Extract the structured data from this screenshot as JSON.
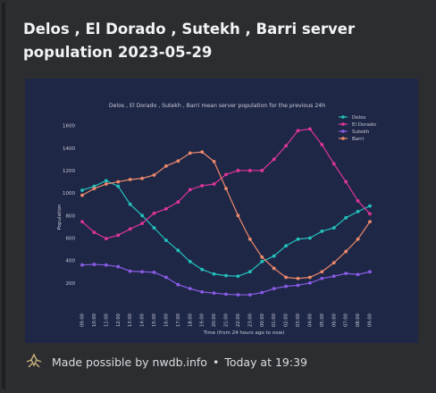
{
  "embed": {
    "title": "Delos , El Dorado , Sutekh , Barri server population 2023-05-29",
    "footer_text": "Made possible by nwdb.info",
    "footer_time": "Today at 19:39",
    "footer_separator": "•",
    "footer_icon": "nwdb-logo-icon"
  },
  "colors": {
    "background": "#2b2d31",
    "plot_background": "#1f2747",
    "Delos": "#22c3bd",
    "El Dorado": "#e0359a",
    "Sutekh": "#8a5ce6",
    "Barri": "#ee8a6a"
  },
  "chart_data": {
    "type": "line",
    "title": "Delos , El Dorado , Sutekh , Barri mean server population for the previous 24h",
    "xlabel": "Time (from 24 hours ago to now)",
    "ylabel": "Population",
    "ylim": [
      0,
      1700
    ],
    "yticks": [
      200,
      400,
      600,
      800,
      1000,
      1200,
      1400,
      1600
    ],
    "grid": false,
    "legend_position": "top-right",
    "x_ticks": [
      "09:00",
      "10:00",
      "11:00",
      "12:00",
      "13:00",
      "14:00",
      "15:00",
      "16:00",
      "17:00",
      "18:00",
      "19:00",
      "20:00",
      "21:00",
      "22:00",
      "23:00",
      "00:00",
      "01:00",
      "02:00",
      "03:00",
      "04:00",
      "05:00",
      "06:00",
      "07:00",
      "08:00",
      "09:00"
    ],
    "x": [
      0,
      0.5,
      1,
      1.5,
      2,
      2.5,
      3,
      3.5,
      4,
      4.5,
      5,
      5.5,
      6,
      6.5,
      7,
      7.5,
      8,
      8.5,
      9,
      9.5,
      10,
      10.5,
      11,
      11.5,
      12,
      12.5,
      13,
      13.5,
      14,
      14.5,
      15,
      15.5,
      16,
      16.5,
      17,
      17.5,
      18,
      18.5,
      19,
      19.5,
      20,
      20.5,
      21,
      21.5,
      22,
      22.5,
      23,
      23.5,
      24
    ],
    "series": [
      {
        "name": "Delos",
        "points": [
          [
            0,
            1025
          ],
          [
            1,
            1060
          ],
          [
            2,
            1110
          ],
          [
            3,
            1060
          ],
          [
            4,
            900
          ],
          [
            5,
            800
          ],
          [
            6,
            690
          ],
          [
            7,
            580
          ],
          [
            8,
            490
          ],
          [
            9,
            390
          ],
          [
            10,
            320
          ],
          [
            11,
            280
          ],
          [
            12,
            265
          ],
          [
            13,
            260
          ],
          [
            14,
            300
          ],
          [
            15,
            390
          ],
          [
            16,
            440
          ],
          [
            17,
            530
          ],
          [
            18,
            590
          ],
          [
            19,
            600
          ],
          [
            20,
            660
          ],
          [
            21,
            690
          ],
          [
            22,
            780
          ],
          [
            23,
            835
          ],
          [
            24,
            885
          ]
        ]
      },
      {
        "name": "El Dorado",
        "points": [
          [
            0,
            745
          ],
          [
            1,
            650
          ],
          [
            2,
            595
          ],
          [
            3,
            625
          ],
          [
            4,
            680
          ],
          [
            5,
            730
          ],
          [
            6,
            820
          ],
          [
            7,
            860
          ],
          [
            8,
            920
          ],
          [
            9,
            1030
          ],
          [
            10,
            1065
          ],
          [
            11,
            1080
          ],
          [
            12,
            1165
          ],
          [
            13,
            1200
          ],
          [
            14,
            1200
          ],
          [
            15,
            1200
          ],
          [
            16,
            1300
          ],
          [
            17,
            1420
          ],
          [
            18,
            1555
          ],
          [
            19,
            1570
          ],
          [
            20,
            1430
          ],
          [
            21,
            1260
          ],
          [
            22,
            1100
          ],
          [
            23,
            930
          ],
          [
            24,
            815
          ]
        ]
      },
      {
        "name": "Sutekh",
        "points": [
          [
            0,
            360
          ],
          [
            1,
            365
          ],
          [
            2,
            360
          ],
          [
            3,
            345
          ],
          [
            4,
            305
          ],
          [
            5,
            300
          ],
          [
            6,
            295
          ],
          [
            7,
            250
          ],
          [
            8,
            185
          ],
          [
            9,
            150
          ],
          [
            10,
            120
          ],
          [
            11,
            110
          ],
          [
            12,
            100
          ],
          [
            13,
            95
          ],
          [
            14,
            95
          ],
          [
            15,
            115
          ],
          [
            16,
            150
          ],
          [
            17,
            170
          ],
          [
            18,
            180
          ],
          [
            19,
            200
          ],
          [
            20,
            240
          ],
          [
            21,
            260
          ],
          [
            22,
            285
          ],
          [
            23,
            275
          ],
          [
            24,
            300
          ]
        ]
      },
      {
        "name": "Barri",
        "points": [
          [
            0,
            980
          ],
          [
            1,
            1040
          ],
          [
            2,
            1080
          ],
          [
            3,
            1100
          ],
          [
            4,
            1120
          ],
          [
            5,
            1130
          ],
          [
            6,
            1160
          ],
          [
            7,
            1240
          ],
          [
            8,
            1285
          ],
          [
            9,
            1355
          ],
          [
            10,
            1365
          ],
          [
            11,
            1280
          ],
          [
            12,
            1040
          ],
          [
            13,
            800
          ],
          [
            14,
            590
          ],
          [
            15,
            430
          ],
          [
            16,
            330
          ],
          [
            17,
            250
          ],
          [
            18,
            240
          ],
          [
            19,
            250
          ],
          [
            20,
            300
          ],
          [
            21,
            380
          ],
          [
            22,
            480
          ],
          [
            23,
            590
          ],
          [
            24,
            745
          ]
        ]
      }
    ]
  }
}
